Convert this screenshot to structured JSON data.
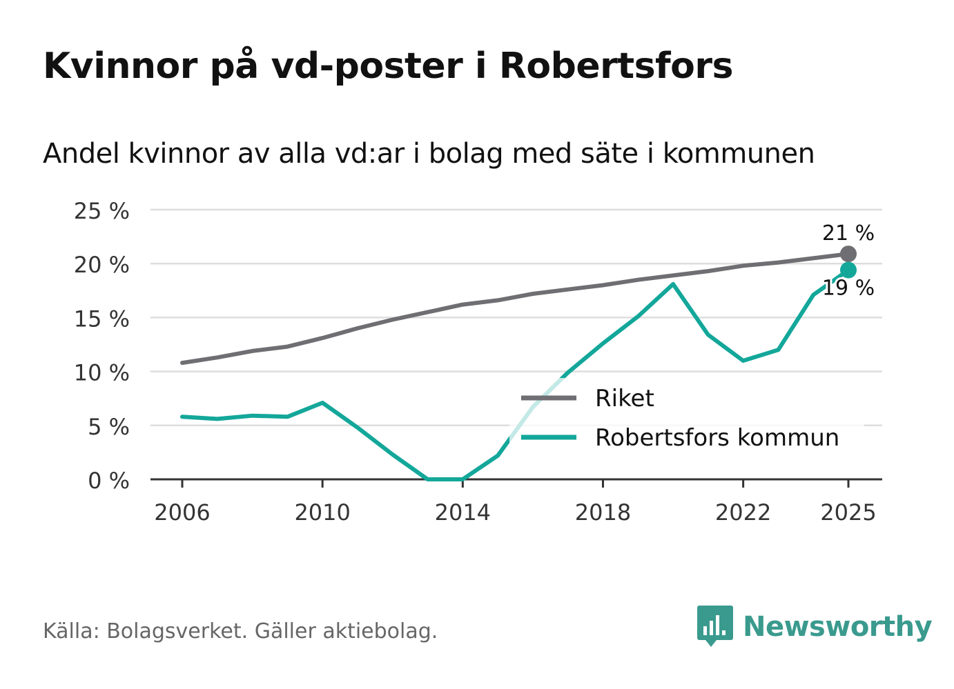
{
  "title": "Kvinnor på vd-poster i Robertsfors",
  "subtitle": "Andel kvinnor av alla vd:ar i bolag med säte i kommunen",
  "footer": {
    "source": "Källa: Bolagsverket. Gäller aktiebolag.",
    "brand": "Newsworthy"
  },
  "colors": {
    "riket": "#6f6e73",
    "kommun": "#13a79a",
    "grid": "#dddddd",
    "axis": "#333333",
    "brand": "#3a9a8e"
  },
  "icons": {
    "brand_logo": "bar-chart-speech-bubble-icon"
  },
  "chart_data": {
    "type": "line",
    "x": [
      2006,
      2007,
      2008,
      2009,
      2010,
      2011,
      2012,
      2013,
      2014,
      2015,
      2016,
      2017,
      2018,
      2019,
      2020,
      2021,
      2022,
      2023,
      2024,
      2025
    ],
    "series": [
      {
        "name": "Riket",
        "color": "#6f6e73",
        "values": [
          10.8,
          11.3,
          11.9,
          12.3,
          13.1,
          14.0,
          14.8,
          15.5,
          16.2,
          16.6,
          17.2,
          17.6,
          18.0,
          18.5,
          18.9,
          19.3,
          19.8,
          20.1,
          20.5,
          20.9
        ],
        "end_label": "21 %"
      },
      {
        "name": "Robertsfors kommun",
        "color": "#13a79a",
        "values": [
          5.8,
          5.6,
          5.9,
          5.8,
          7.1,
          4.8,
          2.3,
          0.0,
          0.0,
          2.2,
          6.7,
          9.9,
          12.6,
          15.1,
          18.1,
          13.4,
          11.0,
          12.0,
          17.1,
          19.4
        ],
        "end_label": "19 %"
      }
    ],
    "x_ticks": [
      2006,
      2010,
      2014,
      2018,
      2022,
      2025
    ],
    "x_tick_labels": [
      "2006",
      "2010",
      "2014",
      "2018",
      "2022",
      "2025"
    ],
    "y_ticks": [
      0,
      5,
      10,
      15,
      20,
      25
    ],
    "y_tick_labels": [
      "0 %",
      "5 %",
      "10 %",
      "15 %",
      "20 %",
      "25 %"
    ],
    "ylim": [
      0,
      25
    ],
    "xlim": [
      2006,
      2025
    ],
    "grid": true,
    "legend": [
      "Riket",
      "Robertsfors kommun"
    ],
    "legend_position": "center-right",
    "title": "Kvinnor på vd-poster i Robertsfors",
    "subtitle": "Andel kvinnor av alla vd:ar i bolag med säte i kommunen",
    "xlabel": "",
    "ylabel": ""
  }
}
